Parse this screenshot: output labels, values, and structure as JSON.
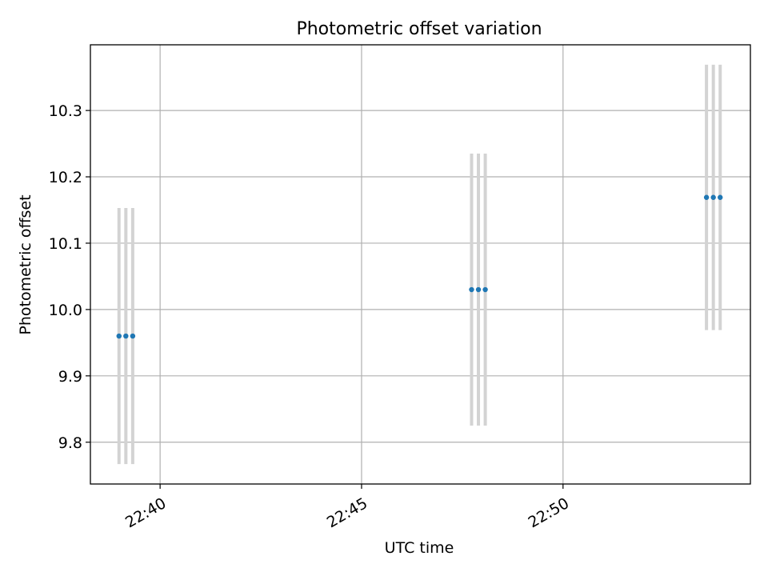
{
  "chart_data": {
    "type": "scatter",
    "title": "Photometric offset variation",
    "xlabel": "UTC time",
    "ylabel": "Photometric offset",
    "x_ticks": [
      "22:40",
      "22:45",
      "22:50"
    ],
    "x_tick_minutes": [
      40,
      45,
      50
    ],
    "x_range_minutes": [
      38.27,
      54.65
    ],
    "y_ticks": [
      "9.8",
      "9.9",
      "10.0",
      "10.1",
      "10.2",
      "10.3"
    ],
    "ylim": [
      9.737,
      10.399
    ],
    "grid": true,
    "colors": {
      "marker": "#1f77b4",
      "errorbar": "#d3d3d3",
      "grid": "#b0b0b0",
      "axis": "#000000"
    },
    "points": [
      {
        "t": 38.98,
        "y": 9.96,
        "err": 0.193
      },
      {
        "t": 39.15,
        "y": 9.96,
        "err": 0.193
      },
      {
        "t": 39.32,
        "y": 9.96,
        "err": 0.193
      },
      {
        "t": 47.73,
        "y": 10.03,
        "err": 0.205
      },
      {
        "t": 47.9,
        "y": 10.03,
        "err": 0.205
      },
      {
        "t": 48.07,
        "y": 10.03,
        "err": 0.205
      },
      {
        "t": 53.56,
        "y": 10.169,
        "err": 0.2
      },
      {
        "t": 53.73,
        "y": 10.169,
        "err": 0.2
      },
      {
        "t": 53.9,
        "y": 10.169,
        "err": 0.2
      }
    ]
  }
}
